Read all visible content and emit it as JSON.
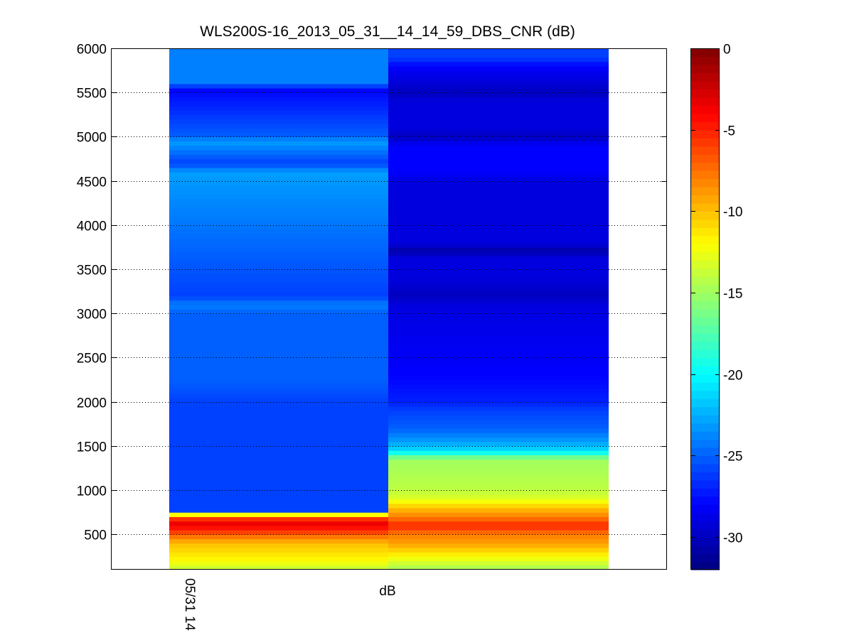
{
  "chart_data": {
    "type": "heatmap",
    "title": "WLS200S-16_2013_05_31__14_14_59_DBS_CNR (dB)",
    "xlabel": "dB",
    "ylabel": "",
    "x_tick_labels": [
      "05/31 14"
    ],
    "ylim": [
      100,
      6000
    ],
    "y_ticks": [
      500,
      1000,
      1500,
      2000,
      2500,
      3000,
      3500,
      4000,
      4500,
      5000,
      5500,
      6000
    ],
    "grid": "horizontal dotted",
    "colorbar": {
      "position": "right",
      "colormap": "jet",
      "range": [
        -32,
        0
      ],
      "ticks": [
        0,
        -5,
        -10,
        -15,
        -20,
        -25,
        -30
      ]
    },
    "row_height": 50,
    "columns": [
      {
        "name": "column-1",
        "profile": [
          [
            100,
            -14
          ],
          [
            200,
            -12
          ],
          [
            300,
            -11
          ],
          [
            400,
            -10
          ],
          [
            500,
            -7
          ],
          [
            550,
            -5
          ],
          [
            600,
            -4
          ],
          [
            650,
            -3
          ],
          [
            700,
            -8
          ],
          [
            725,
            -12
          ],
          [
            750,
            -26
          ],
          [
            2000,
            -26
          ],
          [
            2250,
            -25
          ],
          [
            3000,
            -25
          ],
          [
            3100,
            -24
          ],
          [
            3200,
            -26
          ],
          [
            4600,
            -23
          ],
          [
            4700,
            -26
          ],
          [
            4950,
            -23
          ],
          [
            5000,
            -25
          ],
          [
            5550,
            -28
          ],
          [
            5600,
            -24
          ],
          [
            6000,
            -24
          ]
        ]
      },
      {
        "name": "column-2",
        "profile": [
          [
            100,
            -15
          ],
          [
            200,
            -13
          ],
          [
            300,
            -11
          ],
          [
            400,
            -9
          ],
          [
            500,
            -8
          ],
          [
            600,
            -5
          ],
          [
            700,
            -8
          ],
          [
            800,
            -10
          ],
          [
            900,
            -13
          ],
          [
            1000,
            -14
          ],
          [
            1350,
            -15
          ],
          [
            1400,
            -18
          ],
          [
            1450,
            -21
          ],
          [
            1550,
            -23
          ],
          [
            1700,
            -25
          ],
          [
            1900,
            -26
          ],
          [
            2000,
            -27
          ],
          [
            2300,
            -28
          ],
          [
            3100,
            -29
          ],
          [
            3200,
            -30
          ],
          [
            3400,
            -29
          ],
          [
            3650,
            -29
          ],
          [
            3700,
            -31
          ],
          [
            3800,
            -29
          ],
          [
            4500,
            -29
          ],
          [
            4600,
            -28
          ],
          [
            4900,
            -28
          ],
          [
            5000,
            -30
          ],
          [
            5100,
            -29
          ],
          [
            5400,
            -29
          ],
          [
            5500,
            -30
          ],
          [
            5800,
            -28
          ],
          [
            5900,
            -26
          ],
          [
            6000,
            -26
          ]
        ]
      }
    ]
  }
}
